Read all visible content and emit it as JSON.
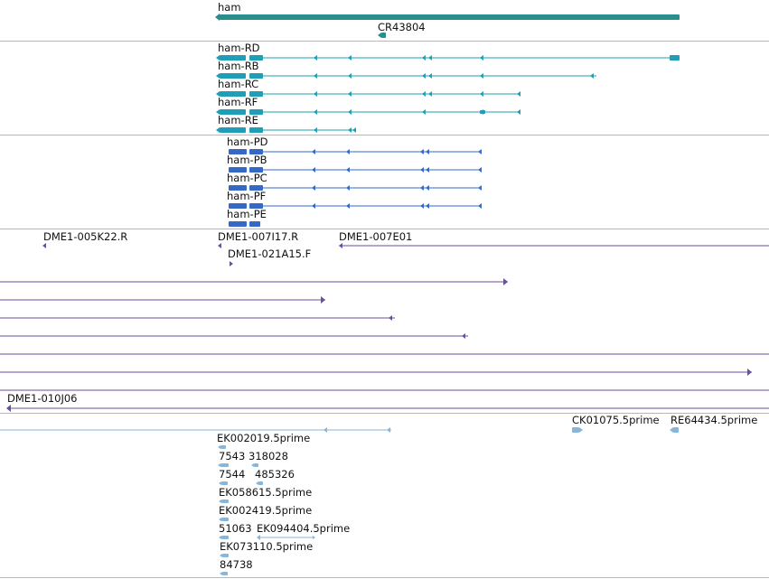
{
  "colors": {
    "gene": "#2a8f8c",
    "rna": "#1f9fb5",
    "cds": "#3668c8",
    "clone": "#6a4ea0",
    "est": "#86b6dc",
    "divider": "#b8b8b8",
    "text": "#111111"
  },
  "labels": {
    "ham": "ham",
    "cr43804": "CR43804",
    "ham_rd": "ham-RD",
    "ham_rb": "ham-RB",
    "ham_rc": "ham-RC",
    "ham_rf": "ham-RF",
    "ham_re": "ham-RE",
    "ham_pd": "ham-PD",
    "ham_pb": "ham-PB",
    "ham_pc": "ham-PC",
    "ham_pf": "ham-PF",
    "ham_pe": "ham-PE",
    "dme_005k22": "DME1-005K22.R",
    "dme_007i17": "DME1-007I17.R",
    "dme_007e01": "DME1-007E01",
    "dme_021a15": "DME1-021A15.F",
    "dme_010j06": "DME1-010J06",
    "ck01075": "CK01075.5prime",
    "re64434": "RE64434.5prime",
    "ek002019": "EK002019.5prime",
    "est_7543": "7543",
    "est_318028": "318028",
    "est_7544": "7544",
    "est_485326": "485326",
    "ek058615": "EK058615.5prime",
    "ek002419": "EK002419.5prime",
    "est_51063": "51063",
    "ek094404": "EK094404.5prime",
    "ek073110": "EK073110.5prime",
    "est_84738": "84738"
  }
}
